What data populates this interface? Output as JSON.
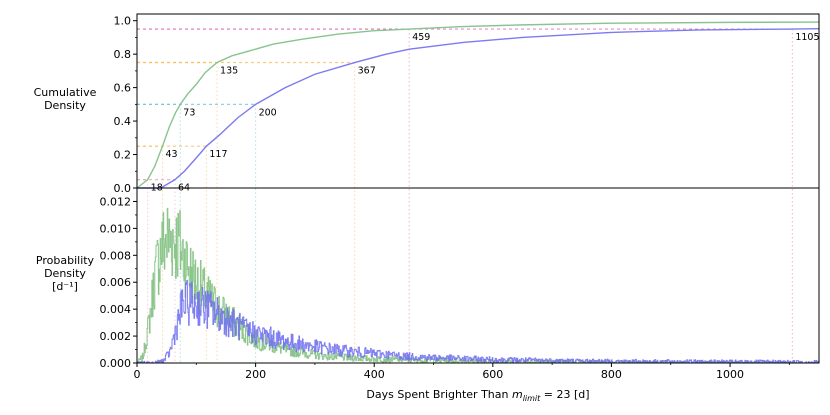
{
  "chart_data": [
    {
      "type": "line",
      "panel": "top",
      "ylabel_lines": [
        "Cumulative",
        "Density"
      ],
      "xlim": [
        0,
        1150
      ],
      "ylim": [
        0,
        1.04
      ],
      "yticks": [
        0.0,
        0.2,
        0.4,
        0.6,
        0.8,
        1.0
      ],
      "ytick_labels": [
        "0.0",
        "0.2",
        "0.4",
        "0.6",
        "0.8",
        "1.0"
      ],
      "series": [
        {
          "color": "#88c48e",
          "x": [
            0,
            18,
            30,
            43,
            55,
            65,
            73,
            85,
            100,
            115,
            135,
            160,
            190,
            230,
            280,
            340,
            400,
            459,
            550,
            650,
            800,
            1000,
            1150
          ],
          "y": [
            0,
            0.05,
            0.13,
            0.25,
            0.37,
            0.45,
            0.5,
            0.56,
            0.62,
            0.69,
            0.75,
            0.79,
            0.82,
            0.86,
            0.89,
            0.92,
            0.94,
            0.95,
            0.965,
            0.975,
            0.985,
            0.99,
            0.992
          ]
        },
        {
          "color": "#7b7bf0",
          "x": [
            0,
            40,
            64,
            80,
            100,
            117,
            140,
            170,
            200,
            250,
            300,
            367,
            420,
            459,
            550,
            650,
            800,
            950,
            1105,
            1150
          ],
          "y": [
            0,
            0,
            0.05,
            0.1,
            0.18,
            0.25,
            0.32,
            0.42,
            0.5,
            0.6,
            0.68,
            0.75,
            0.8,
            0.83,
            0.87,
            0.9,
            0.93,
            0.945,
            0.95,
            0.952
          ]
        }
      ],
      "annotations": [
        {
          "level": 0.05,
          "x": 18,
          "label": "18",
          "color": "#f0a0c0",
          "series": 0
        },
        {
          "level": 0.05,
          "x": 64,
          "label": "64",
          "color": "#f0a0c0",
          "series": 1
        },
        {
          "level": 0.25,
          "x": 43,
          "label": "43",
          "color": "#f5c060",
          "series": 0
        },
        {
          "level": 0.25,
          "x": 117,
          "label": "117",
          "color": "#f5c060",
          "series": 1
        },
        {
          "level": 0.5,
          "x": 73,
          "label": "73",
          "color": "#70c8dd",
          "series": 0
        },
        {
          "level": 0.5,
          "x": 200,
          "label": "200",
          "color": "#70c8dd",
          "series": 1
        },
        {
          "level": 0.75,
          "x": 135,
          "label": "135",
          "color": "#f5c060",
          "series": 0
        },
        {
          "level": 0.75,
          "x": 367,
          "label": "367",
          "color": "#f5c060",
          "series": 1
        },
        {
          "level": 0.95,
          "x": 459,
          "label": "459",
          "color": "#e070c0",
          "series": 0
        },
        {
          "level": 0.95,
          "x": 1105,
          "label": "1105",
          "color": "#e070c0",
          "series": 1
        }
      ]
    },
    {
      "type": "line",
      "panel": "bottom",
      "ylabel_lines": [
        "Probability",
        "Density"
      ],
      "ylabel_unit": "[d⁻¹]",
      "xlabel_prefix": "Days Spent Brighter Than ",
      "xlabel_math_m": "m",
      "xlabel_math_sub": "limit",
      "xlabel_suffix": " = 23 [d]",
      "xlim": [
        0,
        1150
      ],
      "ylim": [
        0,
        0.013
      ],
      "xticks": [
        0,
        200,
        400,
        600,
        800,
        1000
      ],
      "xtick_labels": [
        "0",
        "200",
        "400",
        "600",
        "800",
        "1000"
      ],
      "yticks": [
        0.0,
        0.002,
        0.004,
        0.006,
        0.008,
        0.01,
        0.012
      ],
      "ytick_labels": [
        "0.000",
        "0.002",
        "0.004",
        "0.006",
        "0.008",
        "0.010",
        "0.012"
      ],
      "series": [
        {
          "color": "#80c080",
          "x": [
            0,
            10,
            20,
            30,
            40,
            50,
            60,
            70,
            80,
            90,
            100,
            120,
            140,
            160,
            180,
            200,
            250,
            300,
            350,
            400,
            500,
            600,
            800,
            1000,
            1150
          ],
          "y": [
            0,
            0.0005,
            0.003,
            0.0065,
            0.0085,
            0.0092,
            0.0093,
            0.0088,
            0.0078,
            0.0068,
            0.006,
            0.0048,
            0.0039,
            0.0031,
            0.0024,
            0.0017,
            0.001,
            0.0006,
            0.0004,
            0.0003,
            0.0002,
            0.00012,
            6e-05,
            3e-05,
            2e-05
          ]
        },
        {
          "color": "#7070f0",
          "x": [
            0,
            30,
            45,
            55,
            65,
            75,
            85,
            100,
            120,
            140,
            160,
            180,
            200,
            250,
            300,
            350,
            400,
            450,
            500,
            600,
            700,
            800,
            1000,
            1150
          ],
          "y": [
            0,
            0,
            0.0002,
            0.0008,
            0.0025,
            0.0042,
            0.0045,
            0.0044,
            0.004,
            0.0035,
            0.003,
            0.0025,
            0.0022,
            0.0016,
            0.0012,
            0.0009,
            0.0007,
            0.0005,
            0.0004,
            0.00025,
            0.00018,
            0.00012,
            8e-05,
            6e-05
          ]
        }
      ]
    }
  ]
}
